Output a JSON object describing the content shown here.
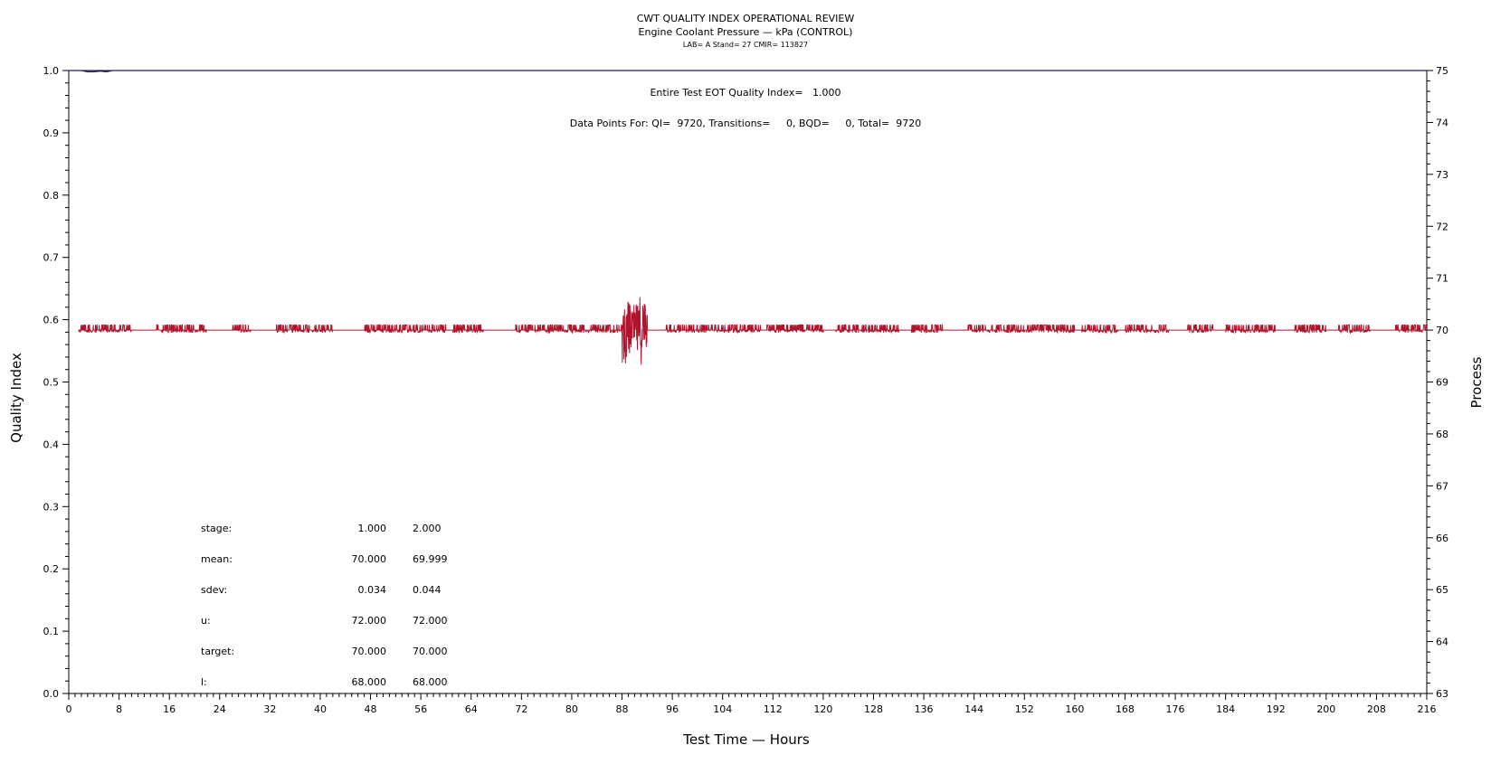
{
  "chart_data": {
    "type": "line",
    "title": "CWT QUALITY INDEX OPERATIONAL REVIEW",
    "subtitle": "Engine Coolant Pressure — kPa (CONTROL)",
    "subtitle2": "LAB= A Stand= 27 CMIR= 113827",
    "xlabel": "Test Time — Hours",
    "ylabel": "Quality Index",
    "y2label": "Process",
    "xlim": [
      0,
      216
    ],
    "ylim": [
      0,
      1.0
    ],
    "y2lim": [
      63,
      75
    ],
    "x_ticks": [
      "0",
      "8",
      "16",
      "24",
      "32",
      "40",
      "48",
      "56",
      "64",
      "72",
      "80",
      "88",
      "96",
      "104",
      "112",
      "120",
      "128",
      "136",
      "144",
      "152",
      "160",
      "168",
      "176",
      "184",
      "192",
      "200",
      "208",
      "216"
    ],
    "y_ticks": [
      "0.0",
      "0.1",
      "0.2",
      "0.3",
      "0.4",
      "0.5",
      "0.6",
      "0.7",
      "0.8",
      "0.9",
      "1.0"
    ],
    "y2_ticks": [
      "63",
      "64",
      "65",
      "66",
      "67",
      "68",
      "69",
      "70",
      "71",
      "72",
      "73",
      "74",
      "75"
    ],
    "annotation_qi": "Entire Test EOT Quality Index=   1.000",
    "annotation_points": "Data Points For: QI=  9720, Transitions=     0, BQD=     0, Total=  9720",
    "stats": {
      "rows": [
        {
          "label": "stage:",
          "v1": "1.000",
          "v2": "2.000"
        },
        {
          "label": "mean:",
          "v1": "70.000",
          "v2": "69.999"
        },
        {
          "label": "sdev:",
          "v1": "0.034",
          "v2": "0.044"
        },
        {
          "label": "u:",
          "v1": "72.000",
          "v2": "72.000"
        },
        {
          "label": "target:",
          "v1": "70.000",
          "v2": "70.000"
        },
        {
          "label": "l:",
          "v1": "68.000",
          "v2": "68.000"
        }
      ]
    },
    "series": [
      {
        "axis": "left",
        "color": "#1a1a6e",
        "x": [
          0,
          2,
          3,
          4,
          5,
          6,
          7,
          216
        ],
        "y": [
          1.0,
          1.0,
          0.998,
          0.998,
          0.999,
          0.998,
          1.0,
          1.0
        ]
      },
      {
        "axis": "right",
        "color": "#b0142c",
        "baseline": 70.0,
        "x_range": [
          1.5,
          216
        ],
        "noise_clusters": [
          [
            1.5,
            10
          ],
          [
            14,
            22
          ],
          [
            26,
            29
          ],
          [
            33,
            42
          ],
          [
            47,
            60
          ],
          [
            61,
            66
          ],
          [
            71,
            80
          ],
          [
            80,
            86
          ],
          [
            86,
            88
          ],
          [
            88,
            90
          ],
          [
            90,
            92
          ],
          [
            95,
            110
          ],
          [
            111,
            120
          ],
          [
            122,
            132
          ],
          [
            134,
            139
          ],
          [
            143,
            160
          ],
          [
            161,
            167
          ],
          [
            168,
            175
          ],
          [
            178,
            182
          ],
          [
            184,
            192
          ],
          [
            195,
            200
          ],
          [
            202,
            207
          ],
          [
            211,
            216
          ]
        ],
        "big_spike_x": [
          88,
          92
        ],
        "big_spike_max": 70.72,
        "big_spike_min": 69.33,
        "typical_max": 70.1,
        "typical_min": 69.95
      }
    ]
  },
  "colors": {
    "axis": "#000000",
    "qi_line": "#1a1a6e",
    "process": "#b0142c"
  }
}
